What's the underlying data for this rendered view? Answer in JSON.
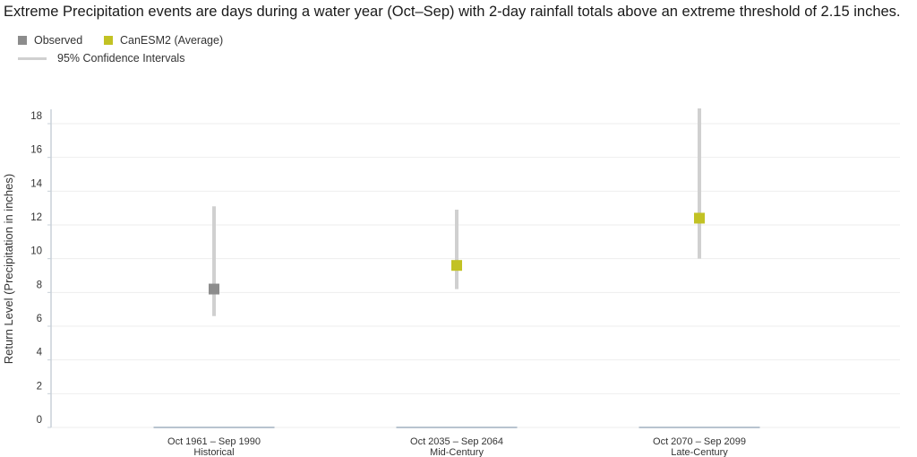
{
  "chart_data": {
    "type": "scatter",
    "title": "Extreme Precipitation events are days during a water year (Oct–Sep) with 2-day rainfall totals above an extreme threshold of 2.15 inches.",
    "ylabel": "Return Level (Precipitation in inches)",
    "xlabel": "",
    "ylim": [
      0,
      18
    ],
    "yticks": [
      "0",
      "2",
      "4",
      "6",
      "8",
      "10",
      "12",
      "14",
      "16",
      "18"
    ],
    "grid": true,
    "legend_placement": "top-left",
    "legend": [
      {
        "label": "Observed",
        "color": "#8c8c8c",
        "kind": "square"
      },
      {
        "label": "CanESM2 (Average)",
        "color": "#c2c224",
        "kind": "square"
      },
      {
        "label": "95% Confidence Intervals",
        "color": "#d0d0d0",
        "kind": "line"
      }
    ],
    "categories": [
      {
        "period": "Oct 1961 – Sep 1990",
        "label": "Historical"
      },
      {
        "period": "Oct 2035 – Sep 2064",
        "label": "Mid-Century"
      },
      {
        "period": "Oct 2070 – Sep 2099",
        "label": "Late-Century"
      }
    ],
    "series": [
      {
        "name": "Observed",
        "color": "#8c8c8c",
        "values": [
          8.2,
          null,
          null
        ],
        "ci_low": [
          6.6,
          null,
          null
        ],
        "ci_high": [
          13.1,
          null,
          null
        ]
      },
      {
        "name": "CanESM2 (Average)",
        "color": "#c2c224",
        "values": [
          null,
          9.6,
          12.4
        ],
        "ci_low": [
          null,
          8.2,
          10.0
        ],
        "ci_high": [
          null,
          12.9,
          18.9
        ]
      }
    ]
  }
}
